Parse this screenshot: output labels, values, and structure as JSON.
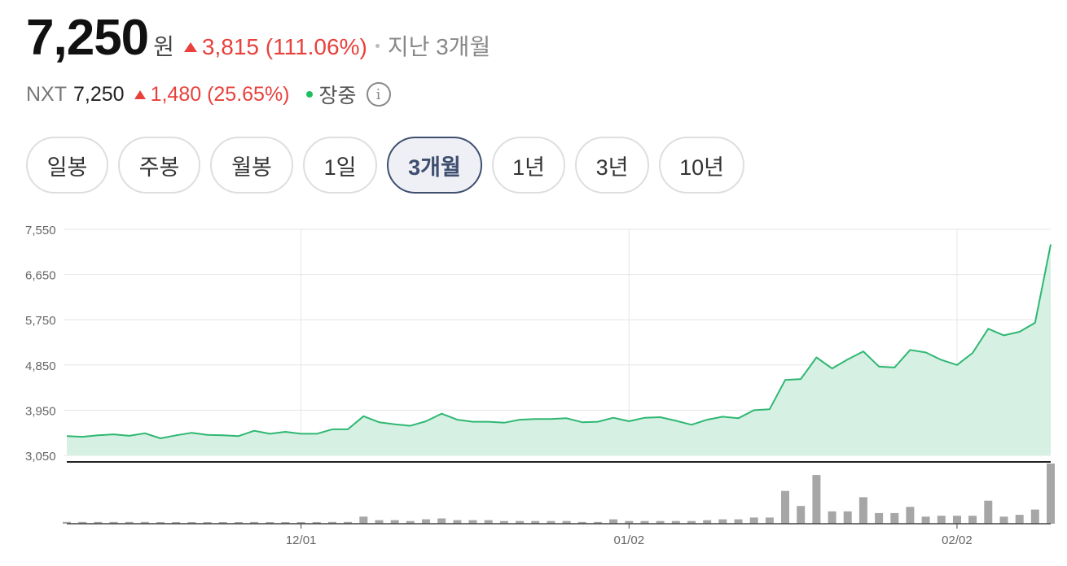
{
  "header": {
    "price": "7,250",
    "unit": "원",
    "change": "3,815 (111.06%)",
    "period": "지난 3개월"
  },
  "nxt": {
    "label": "NXT",
    "price": "7,250",
    "change": "1,480 (25.65%)",
    "status": "장중",
    "info_icon": "info-icon"
  },
  "tabs": [
    {
      "label": "일봉"
    },
    {
      "label": "주봉"
    },
    {
      "label": "월봉"
    },
    {
      "label": "1일"
    },
    {
      "label": "3개월",
      "active": true
    },
    {
      "label": "1년"
    },
    {
      "label": "3년"
    },
    {
      "label": "10년"
    }
  ],
  "colors": {
    "up": "#e8413c",
    "line": "#2fb772",
    "area": "#d6f1e3",
    "volume": "#a6a6a6",
    "active_tab": "#3e4e6e"
  },
  "chart_data": {
    "type": "area",
    "y_ticks": [
      "7,550",
      "6,650",
      "5,750",
      "4,850",
      "3,950",
      "3,050"
    ],
    "ylim": [
      3050,
      7550
    ],
    "x_ticks": [
      "12/01",
      "01/02",
      "02/02"
    ],
    "grid": true,
    "series": [
      {
        "values": [
          3435,
          3420,
          3450,
          3470,
          3440,
          3490,
          3390,
          3450,
          3500,
          3460,
          3450,
          3435,
          3540,
          3480,
          3520,
          3480,
          3480,
          3570,
          3570,
          3830,
          3710,
          3670,
          3640,
          3730,
          3880,
          3760,
          3720,
          3720,
          3700,
          3760,
          3775,
          3775,
          3790,
          3710,
          3720,
          3800,
          3730,
          3800,
          3810,
          3740,
          3660,
          3760,
          3820,
          3790,
          3950,
          3970,
          4550,
          4570,
          5000,
          4780,
          4960,
          5120,
          4820,
          4800,
          5150,
          5100,
          4950,
          4850,
          5090,
          5570,
          5440,
          5510,
          5690,
          7250
        ]
      },
      {
        "values": [
          2,
          2,
          2,
          2,
          2,
          2,
          1,
          1,
          1,
          1,
          1,
          1,
          2,
          1,
          1,
          1,
          1,
          2,
          2,
          8,
          4,
          4,
          3,
          5,
          6,
          4,
          4,
          4,
          3,
          3,
          3,
          3,
          3,
          2,
          2,
          5,
          3,
          3,
          3,
          3,
          3,
          4,
          5,
          5,
          7,
          7,
          37,
          20,
          55,
          14,
          14,
          30,
          12,
          12,
          19,
          8,
          9,
          9,
          9,
          26,
          8,
          10,
          16,
          68
        ]
      }
    ]
  }
}
